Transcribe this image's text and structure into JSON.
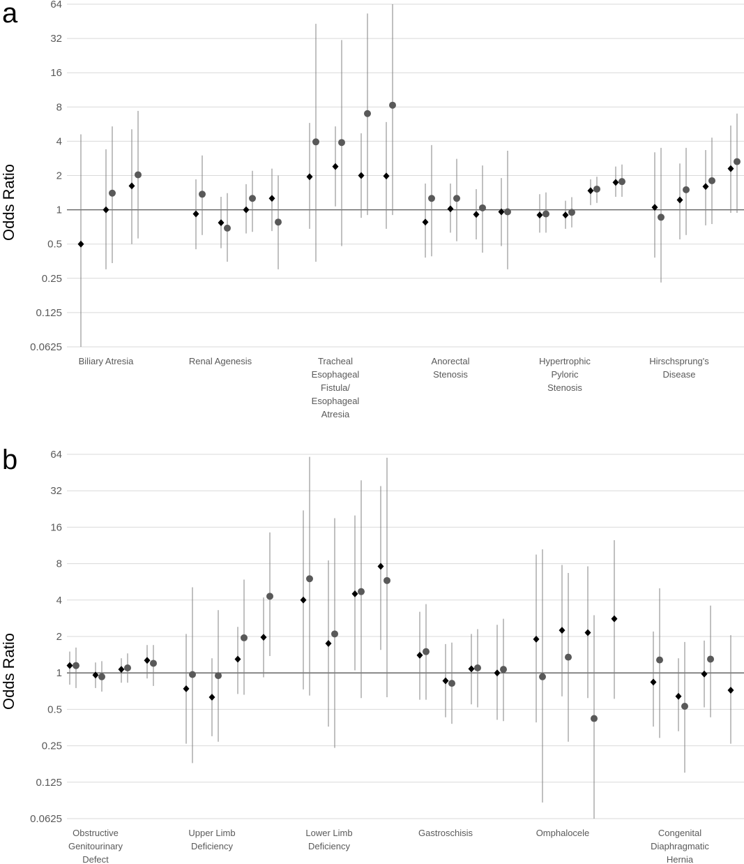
{
  "chart_data": [
    {
      "type": "scatter",
      "panel_label": "a",
      "ylabel": "Odds Ratio",
      "yscale": "log2",
      "ylim": [
        0.0625,
        64
      ],
      "yticks": [
        "64",
        "32",
        "16",
        "8",
        "4",
        "2",
        "1",
        "0.5",
        "0.25",
        "0.125",
        "0.0625"
      ],
      "reference_line": 1,
      "grid": true,
      "markers": {
        "diamond_color": "#000000",
        "circle_color": "#595959",
        "errorbar_color": "#808080"
      },
      "categories": [
        "Biliary Atresia",
        "Renal Agenesis",
        "Tracheal Esophageal Fistula/ Esophageal Atresia",
        "Anorectal Stenosis",
        "Hypertrophic Pyloric Stenosis",
        "Hirschsprung's Disease"
      ],
      "points": [
        {
          "cat": 0,
          "marker": "diamond",
          "or": 0.5,
          "lo": 0.0625,
          "hi": 4.6
        },
        {
          "cat": 0,
          "marker": "diamond",
          "or": 1.0,
          "lo": 0.3,
          "hi": 3.4
        },
        {
          "cat": 0,
          "marker": "circle",
          "or": 1.4,
          "lo": 0.34,
          "hi": 5.4
        },
        {
          "cat": 0,
          "marker": "diamond",
          "or": 1.62,
          "lo": 0.5,
          "hi": 5.1
        },
        {
          "cat": 0,
          "marker": "circle",
          "or": 2.03,
          "lo": 0.56,
          "hi": 7.4
        },
        {
          "cat": 1,
          "marker": "diamond",
          "or": 0.92,
          "lo": 0.45,
          "hi": 1.85
        },
        {
          "cat": 1,
          "marker": "circle",
          "or": 1.37,
          "lo": 0.6,
          "hi": 3.0
        },
        {
          "cat": 1,
          "marker": "diamond",
          "or": 0.77,
          "lo": 0.46,
          "hi": 1.3
        },
        {
          "cat": 1,
          "marker": "circle",
          "or": 0.69,
          "lo": 0.35,
          "hi": 1.4
        },
        {
          "cat": 1,
          "marker": "diamond",
          "or": 1.0,
          "lo": 0.62,
          "hi": 1.68
        },
        {
          "cat": 1,
          "marker": "circle",
          "or": 1.26,
          "lo": 0.64,
          "hi": 2.2
        },
        {
          "cat": 1,
          "marker": "diamond",
          "or": 1.26,
          "lo": 0.65,
          "hi": 2.3
        },
        {
          "cat": 1,
          "marker": "circle",
          "or": 0.78,
          "lo": 0.3,
          "hi": 2.0
        },
        {
          "cat": 2,
          "marker": "diamond",
          "or": 1.95,
          "lo": 0.68,
          "hi": 5.8
        },
        {
          "cat": 2,
          "marker": "circle",
          "or": 3.95,
          "lo": 0.35,
          "hi": 43
        },
        {
          "cat": 2,
          "marker": "diamond",
          "or": 2.4,
          "lo": 1.07,
          "hi": 5.4
        },
        {
          "cat": 2,
          "marker": "circle",
          "or": 3.9,
          "lo": 0.48,
          "hi": 31
        },
        {
          "cat": 2,
          "marker": "diamond",
          "or": 2.0,
          "lo": 0.85,
          "hi": 4.7
        },
        {
          "cat": 2,
          "marker": "circle",
          "or": 7.0,
          "lo": 0.9,
          "hi": 53
        },
        {
          "cat": 2,
          "marker": "diamond",
          "or": 1.98,
          "lo": 0.68,
          "hi": 5.9
        },
        {
          "cat": 2,
          "marker": "circle",
          "or": 8.3,
          "lo": 0.9,
          "hi": 64
        },
        {
          "cat": 3,
          "marker": "diamond",
          "or": 0.78,
          "lo": 0.38,
          "hi": 1.7
        },
        {
          "cat": 3,
          "marker": "circle",
          "or": 1.26,
          "lo": 0.39,
          "hi": 3.7
        },
        {
          "cat": 3,
          "marker": "diamond",
          "or": 1.02,
          "lo": 0.63,
          "hi": 1.7
        },
        {
          "cat": 3,
          "marker": "circle",
          "or": 1.26,
          "lo": 0.53,
          "hi": 2.8
        },
        {
          "cat": 3,
          "marker": "diamond",
          "or": 0.91,
          "lo": 0.55,
          "hi": 1.52
        },
        {
          "cat": 3,
          "marker": "circle",
          "or": 1.04,
          "lo": 0.42,
          "hi": 2.45
        },
        {
          "cat": 3,
          "marker": "diamond",
          "or": 0.96,
          "lo": 0.48,
          "hi": 1.9
        },
        {
          "cat": 3,
          "marker": "circle",
          "or": 0.96,
          "lo": 0.3,
          "hi": 3.3
        },
        {
          "cat": 4,
          "marker": "diamond",
          "or": 0.9,
          "lo": 0.63,
          "hi": 1.37
        },
        {
          "cat": 4,
          "marker": "circle",
          "or": 0.92,
          "lo": 0.63,
          "hi": 1.42
        },
        {
          "cat": 4,
          "marker": "diamond",
          "or": 0.9,
          "lo": 0.68,
          "hi": 1.2
        },
        {
          "cat": 4,
          "marker": "circle",
          "or": 0.95,
          "lo": 0.7,
          "hi": 1.29
        },
        {
          "cat": 4,
          "marker": "diamond",
          "or": 1.47,
          "lo": 1.1,
          "hi": 1.85
        },
        {
          "cat": 4,
          "marker": "circle",
          "or": 1.52,
          "lo": 1.15,
          "hi": 1.95
        },
        {
          "cat": 4,
          "marker": "diamond",
          "or": 1.74,
          "lo": 1.3,
          "hi": 2.4
        },
        {
          "cat": 4,
          "marker": "circle",
          "or": 1.77,
          "lo": 1.3,
          "hi": 2.5
        },
        {
          "cat": 5,
          "marker": "diamond",
          "or": 1.05,
          "lo": 0.38,
          "hi": 3.2
        },
        {
          "cat": 5,
          "marker": "circle",
          "or": 0.86,
          "lo": 0.23,
          "hi": 3.5
        },
        {
          "cat": 5,
          "marker": "diamond",
          "or": 1.22,
          "lo": 0.55,
          "hi": 2.55
        },
        {
          "cat": 5,
          "marker": "circle",
          "or": 1.5,
          "lo": 0.6,
          "hi": 3.5
        },
        {
          "cat": 5,
          "marker": "diamond",
          "or": 1.6,
          "lo": 0.73,
          "hi": 3.35
        },
        {
          "cat": 5,
          "marker": "circle",
          "or": 1.8,
          "lo": 0.75,
          "hi": 4.3
        },
        {
          "cat": 5,
          "marker": "diamond",
          "or": 2.3,
          "lo": 0.94,
          "hi": 5.5
        },
        {
          "cat": 5,
          "marker": "circle",
          "or": 2.65,
          "lo": 0.94,
          "hi": 7.0
        }
      ]
    },
    {
      "type": "scatter",
      "panel_label": "b",
      "ylabel": "Odds Ratio",
      "yscale": "log2",
      "ylim": [
        0.0625,
        64
      ],
      "yticks": [
        "64",
        "32",
        "16",
        "8",
        "4",
        "2",
        "1",
        "0.5",
        "0.25",
        "0.125",
        "0.0625"
      ],
      "reference_line": 1,
      "grid": true,
      "markers": {
        "diamond_color": "#000000",
        "circle_color": "#595959",
        "errorbar_color": "#808080"
      },
      "categories": [
        "Obstructive Genitourinary Defect",
        "Upper Limb Deficiency",
        "Lower Limb Deficiency",
        "Gastroschisis",
        "Omphalocele",
        "Congenital Diaphragmatic Hernia"
      ],
      "points": [
        {
          "cat": 0,
          "marker": "diamond",
          "or": 1.15,
          "lo": 0.8,
          "hi": 1.5
        },
        {
          "cat": 0,
          "marker": "circle",
          "or": 1.15,
          "lo": 0.75,
          "hi": 1.62
        },
        {
          "cat": 0,
          "marker": "diamond",
          "or": 0.96,
          "lo": 0.75,
          "hi": 1.22
        },
        {
          "cat": 0,
          "marker": "circle",
          "or": 0.93,
          "lo": 0.7,
          "hi": 1.25
        },
        {
          "cat": 0,
          "marker": "diamond",
          "or": 1.07,
          "lo": 0.83,
          "hi": 1.32
        },
        {
          "cat": 0,
          "marker": "circle",
          "or": 1.1,
          "lo": 0.83,
          "hi": 1.45
        },
        {
          "cat": 0,
          "marker": "diamond",
          "or": 1.27,
          "lo": 0.9,
          "hi": 1.7
        },
        {
          "cat": 0,
          "marker": "circle",
          "or": 1.2,
          "lo": 0.78,
          "hi": 1.7
        },
        {
          "cat": 1,
          "marker": "diamond",
          "or": 0.74,
          "lo": 0.26,
          "hi": 2.1
        },
        {
          "cat": 1,
          "marker": "circle",
          "or": 0.97,
          "lo": 0.18,
          "hi": 5.1
        },
        {
          "cat": 1,
          "marker": "diamond",
          "or": 0.63,
          "lo": 0.3,
          "hi": 1.32
        },
        {
          "cat": 1,
          "marker": "circle",
          "or": 0.95,
          "lo": 0.27,
          "hi": 3.3
        },
        {
          "cat": 1,
          "marker": "diamond",
          "or": 1.3,
          "lo": 0.67,
          "hi": 2.4
        },
        {
          "cat": 1,
          "marker": "circle",
          "or": 1.95,
          "lo": 0.66,
          "hi": 5.9
        },
        {
          "cat": 1,
          "marker": "diamond",
          "or": 1.97,
          "lo": 0.92,
          "hi": 4.2
        },
        {
          "cat": 1,
          "marker": "circle",
          "or": 4.3,
          "lo": 1.38,
          "hi": 14.5
        },
        {
          "cat": 2,
          "marker": "diamond",
          "or": 4.0,
          "lo": 0.73,
          "hi": 22
        },
        {
          "cat": 2,
          "marker": "circle",
          "or": 6.0,
          "lo": 0.65,
          "hi": 61
        },
        {
          "cat": 2,
          "marker": "diamond",
          "or": 1.75,
          "lo": 0.36,
          "hi": 8.5
        },
        {
          "cat": 2,
          "marker": "circle",
          "or": 2.1,
          "lo": 0.24,
          "hi": 19
        },
        {
          "cat": 2,
          "marker": "diamond",
          "or": 4.5,
          "lo": 1.05,
          "hi": 20
        },
        {
          "cat": 2,
          "marker": "circle",
          "or": 4.7,
          "lo": 0.62,
          "hi": 39
        },
        {
          "cat": 2,
          "marker": "diamond",
          "or": 7.6,
          "lo": 1.55,
          "hi": 35
        },
        {
          "cat": 2,
          "marker": "circle",
          "or": 5.8,
          "lo": 0.63,
          "hi": 60
        },
        {
          "cat": 3,
          "marker": "diamond",
          "or": 1.4,
          "lo": 0.6,
          "hi": 3.2
        },
        {
          "cat": 3,
          "marker": "circle",
          "or": 1.5,
          "lo": 0.6,
          "hi": 3.7
        },
        {
          "cat": 3,
          "marker": "diamond",
          "or": 0.86,
          "lo": 0.43,
          "hi": 1.73
        },
        {
          "cat": 3,
          "marker": "circle",
          "or": 0.82,
          "lo": 0.38,
          "hi": 1.78
        },
        {
          "cat": 3,
          "marker": "diamond",
          "or": 1.08,
          "lo": 0.55,
          "hi": 2.1
        },
        {
          "cat": 3,
          "marker": "circle",
          "or": 1.1,
          "lo": 0.52,
          "hi": 2.3
        },
        {
          "cat": 3,
          "marker": "diamond",
          "or": 1.0,
          "lo": 0.41,
          "hi": 2.5
        },
        {
          "cat": 3,
          "marker": "circle",
          "or": 1.07,
          "lo": 0.4,
          "hi": 2.8
        },
        {
          "cat": 4,
          "marker": "diamond",
          "or": 1.9,
          "lo": 0.39,
          "hi": 9.5
        },
        {
          "cat": 4,
          "marker": "circle",
          "or": 0.93,
          "lo": 0.085,
          "hi": 10.5
        },
        {
          "cat": 4,
          "marker": "diamond",
          "or": 2.25,
          "lo": 0.64,
          "hi": 7.8
        },
        {
          "cat": 4,
          "marker": "circle",
          "or": 1.35,
          "lo": 0.27,
          "hi": 6.7
        },
        {
          "cat": 4,
          "marker": "diamond",
          "or": 2.15,
          "lo": 0.62,
          "hi": 7.6
        },
        {
          "cat": 4,
          "marker": "circle",
          "or": 0.42,
          "lo": 0.0625,
          "hi": 3.0
        },
        {
          "cat": 4,
          "marker": "diamond",
          "or": 2.8,
          "lo": 0.61,
          "hi": 12.5
        },
        {
          "cat": 5,
          "marker": "diamond",
          "or": 0.84,
          "lo": 0.36,
          "hi": 2.2
        },
        {
          "cat": 5,
          "marker": "circle",
          "or": 1.28,
          "lo": 0.29,
          "hi": 5.0
        },
        {
          "cat": 5,
          "marker": "diamond",
          "or": 0.64,
          "lo": 0.33,
          "hi": 1.32
        },
        {
          "cat": 5,
          "marker": "circle",
          "or": 0.53,
          "lo": 0.15,
          "hi": 1.8
        },
        {
          "cat": 5,
          "marker": "diamond",
          "or": 0.98,
          "lo": 0.52,
          "hi": 1.85
        },
        {
          "cat": 5,
          "marker": "circle",
          "or": 1.3,
          "lo": 0.43,
          "hi": 3.6
        },
        {
          "cat": 5,
          "marker": "diamond",
          "or": 0.72,
          "lo": 0.26,
          "hi": 2.05
        }
      ]
    }
  ]
}
